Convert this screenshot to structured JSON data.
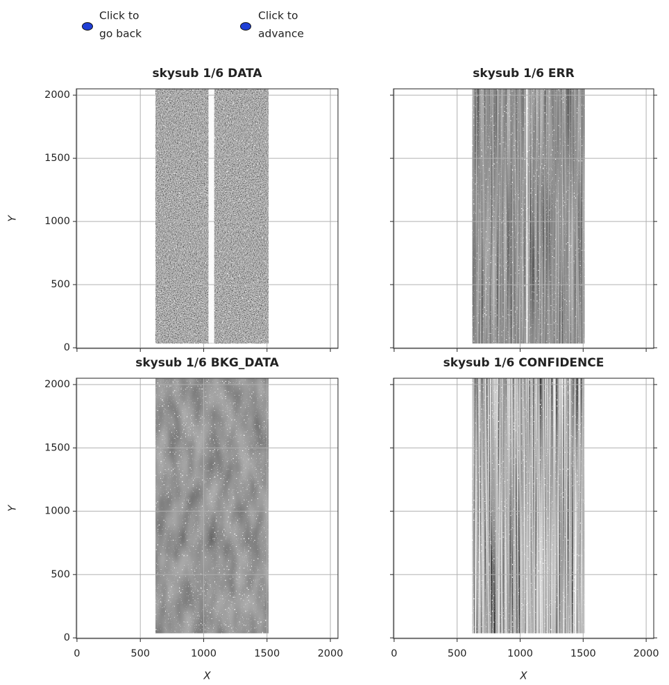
{
  "buttons": [
    {
      "label": [
        "Click to",
        "go back"
      ]
    },
    {
      "label": [
        "Click to",
        "advance"
      ]
    }
  ],
  "chart_data": [
    {
      "type": "image",
      "title": "skysub 1/6 DATA",
      "ylabel": "Y",
      "xlim": [
        -5,
        2060
      ],
      "ylim": [
        -5,
        2050
      ],
      "xticks": [
        0,
        500,
        1000,
        1500,
        2000
      ],
      "yticks": [
        0,
        500,
        1000,
        1500,
        2000
      ],
      "grid": true
    },
    {
      "type": "image",
      "title": "skysub 1/6 ERR",
      "xlim": [
        -5,
        2060
      ],
      "ylim": [
        -5,
        2050
      ],
      "xticks": [
        0,
        500,
        1000,
        1500,
        2000
      ],
      "yticks": [
        0,
        500,
        1000,
        1500,
        2000
      ],
      "grid": true
    },
    {
      "type": "image",
      "title": "skysub 1/6 BKG_DATA",
      "xlabel": "X",
      "ylabel": "Y",
      "xlim": [
        -5,
        2060
      ],
      "ylim": [
        -5,
        2050
      ],
      "xticks": [
        0,
        500,
        1000,
        1500,
        2000
      ],
      "yticks": [
        0,
        500,
        1000,
        1500,
        2000
      ],
      "grid": true
    },
    {
      "type": "image",
      "title": "skysub 1/6 CONFIDENCE",
      "xlabel": "X",
      "xlim": [
        -5,
        2060
      ],
      "ylim": [
        -5,
        2050
      ],
      "xticks": [
        0,
        500,
        1000,
        1500,
        2000
      ],
      "yticks": [
        0,
        500,
        1000,
        1500,
        2000
      ],
      "grid": true
    }
  ]
}
